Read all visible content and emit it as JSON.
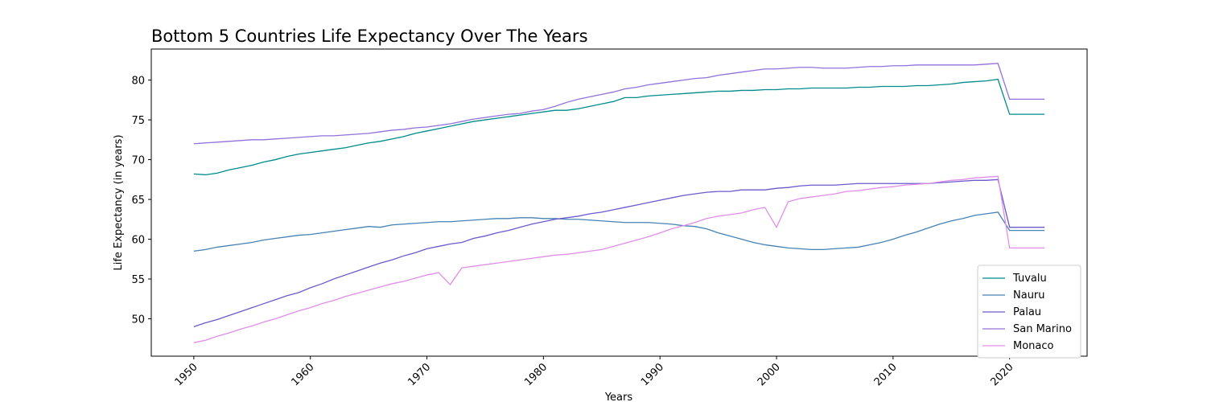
{
  "chart_data": {
    "type": "line",
    "title": "Bottom 5 Countries Life Expectancy Over The Years",
    "x_label": "Years",
    "y_label": "Life Expectancy (in years)",
    "x": [
      1950,
      1951,
      1952,
      1953,
      1954,
      1955,
      1956,
      1957,
      1958,
      1959,
      1960,
      1961,
      1962,
      1963,
      1964,
      1965,
      1966,
      1967,
      1968,
      1969,
      1970,
      1971,
      1972,
      1973,
      1974,
      1975,
      1976,
      1977,
      1978,
      1979,
      1980,
      1981,
      1982,
      1983,
      1984,
      1985,
      1986,
      1987,
      1988,
      1989,
      1990,
      1991,
      1992,
      1993,
      1994,
      1995,
      1996,
      1997,
      1998,
      1999,
      2000,
      2001,
      2002,
      2003,
      2004,
      2005,
      2006,
      2007,
      2008,
      2009,
      2010,
      2011,
      2012,
      2013,
      2014,
      2015,
      2016,
      2017,
      2018,
      2019,
      2020,
      2021,
      2022,
      2023
    ],
    "series": [
      {
        "name": "Tuvalu",
        "color": "#008b8b",
        "values": [
          68.2,
          68.1,
          68.3,
          68.7,
          69.0,
          69.3,
          69.7,
          70.0,
          70.4,
          70.7,
          70.9,
          71.1,
          71.3,
          71.5,
          71.8,
          72.1,
          72.3,
          72.6,
          72.9,
          73.3,
          73.6,
          73.9,
          74.2,
          74.5,
          74.8,
          75.0,
          75.2,
          75.4,
          75.6,
          75.8,
          76.0,
          76.2,
          76.2,
          76.4,
          76.7,
          77.0,
          77.3,
          77.8,
          77.8,
          78.0,
          78.1,
          78.2,
          78.3,
          78.4,
          78.5,
          78.6,
          78.6,
          78.7,
          78.7,
          78.8,
          78.8,
          78.9,
          78.9,
          79.0,
          79.0,
          79.0,
          79.0,
          79.1,
          79.1,
          79.2,
          79.2,
          79.2,
          79.3,
          79.3,
          79.4,
          79.5,
          79.7,
          79.8,
          79.9,
          80.1,
          75.7,
          75.7,
          75.7,
          75.7
        ]
      },
      {
        "name": "Nauru",
        "color": "#4682b4",
        "values": [
          58.5,
          58.7,
          59.0,
          59.2,
          59.4,
          59.6,
          59.9,
          60.1,
          60.3,
          60.5,
          60.6,
          60.8,
          61.0,
          61.2,
          61.4,
          61.6,
          61.5,
          61.8,
          61.9,
          62.0,
          62.1,
          62.2,
          62.2,
          62.3,
          62.4,
          62.5,
          62.6,
          62.6,
          62.7,
          62.7,
          62.6,
          62.6,
          62.5,
          62.5,
          62.4,
          62.3,
          62.2,
          62.1,
          62.1,
          62.1,
          62.0,
          61.9,
          61.7,
          61.6,
          61.3,
          60.8,
          60.4,
          60.0,
          59.6,
          59.3,
          59.1,
          58.9,
          58.8,
          58.7,
          58.7,
          58.8,
          58.9,
          59.0,
          59.3,
          59.6,
          60.0,
          60.5,
          60.9,
          61.4,
          61.9,
          62.3,
          62.6,
          63.0,
          63.2,
          63.4,
          61.1,
          61.1,
          61.1,
          61.1
        ]
      },
      {
        "name": "Palau",
        "color": "#6a5acd",
        "values": [
          49.0,
          49.5,
          49.9,
          50.4,
          50.9,
          51.4,
          51.9,
          52.4,
          52.9,
          53.3,
          53.9,
          54.4,
          55.0,
          55.5,
          56.0,
          56.5,
          57.0,
          57.4,
          57.9,
          58.3,
          58.8,
          59.1,
          59.4,
          59.6,
          60.1,
          60.4,
          60.8,
          61.1,
          61.5,
          61.9,
          62.2,
          62.5,
          62.7,
          62.9,
          63.2,
          63.4,
          63.7,
          64.0,
          64.3,
          64.6,
          64.9,
          65.2,
          65.5,
          65.7,
          65.9,
          66.0,
          66.0,
          66.2,
          66.2,
          66.2,
          66.4,
          66.5,
          66.7,
          66.8,
          66.8,
          66.8,
          66.9,
          67.0,
          67.0,
          67.0,
          67.0,
          67.0,
          67.0,
          67.0,
          67.1,
          67.2,
          67.3,
          67.4,
          67.4,
          67.5,
          61.5,
          61.5,
          61.5,
          61.5
        ]
      },
      {
        "name": "San Marino",
        "color": "#9370db",
        "values": [
          72.0,
          72.1,
          72.2,
          72.3,
          72.4,
          72.5,
          72.5,
          72.6,
          72.7,
          72.8,
          72.9,
          73.0,
          73.0,
          73.1,
          73.2,
          73.3,
          73.5,
          73.7,
          73.8,
          74.0,
          74.1,
          74.3,
          74.5,
          74.8,
          75.1,
          75.3,
          75.5,
          75.7,
          75.8,
          76.1,
          76.3,
          76.7,
          77.2,
          77.6,
          77.9,
          78.2,
          78.5,
          78.9,
          79.1,
          79.4,
          79.6,
          79.8,
          80.0,
          80.2,
          80.3,
          80.6,
          80.8,
          81.0,
          81.2,
          81.4,
          81.4,
          81.5,
          81.6,
          81.6,
          81.5,
          81.5,
          81.5,
          81.6,
          81.7,
          81.7,
          81.8,
          81.8,
          81.9,
          81.9,
          81.9,
          81.9,
          81.9,
          81.9,
          82.0,
          82.1,
          77.6,
          77.6,
          77.6,
          77.6
        ]
      },
      {
        "name": "Monaco",
        "color": "#e08ee8",
        "values": [
          47.0,
          47.3,
          47.8,
          48.2,
          48.7,
          49.1,
          49.6,
          50.0,
          50.5,
          51.0,
          51.4,
          51.9,
          52.3,
          52.8,
          53.2,
          53.6,
          54.0,
          54.4,
          54.7,
          55.1,
          55.5,
          55.8,
          54.3,
          56.4,
          56.6,
          56.8,
          57.0,
          57.2,
          57.4,
          57.6,
          57.8,
          58.0,
          58.1,
          58.3,
          58.5,
          58.7,
          59.1,
          59.5,
          59.9,
          60.3,
          60.8,
          61.3,
          61.7,
          62.1,
          62.6,
          62.9,
          63.1,
          63.3,
          63.7,
          64.0,
          61.5,
          64.7,
          65.1,
          65.3,
          65.5,
          65.7,
          66.0,
          66.1,
          66.3,
          66.5,
          66.6,
          66.8,
          66.9,
          67.0,
          67.2,
          67.4,
          67.5,
          67.7,
          67.8,
          67.9,
          58.9,
          58.9,
          58.9,
          58.9
        ]
      }
    ],
    "xlim": [
      1946.35,
      2026.65
    ],
    "xticks": [
      1950,
      1960,
      1970,
      1980,
      1990,
      2000,
      2010,
      2020
    ],
    "ylim": [
      45.3,
      83.9
    ],
    "yticks": [
      50,
      55,
      60,
      65,
      70,
      75,
      80
    ],
    "grid": false,
    "legend": "lower right"
  }
}
